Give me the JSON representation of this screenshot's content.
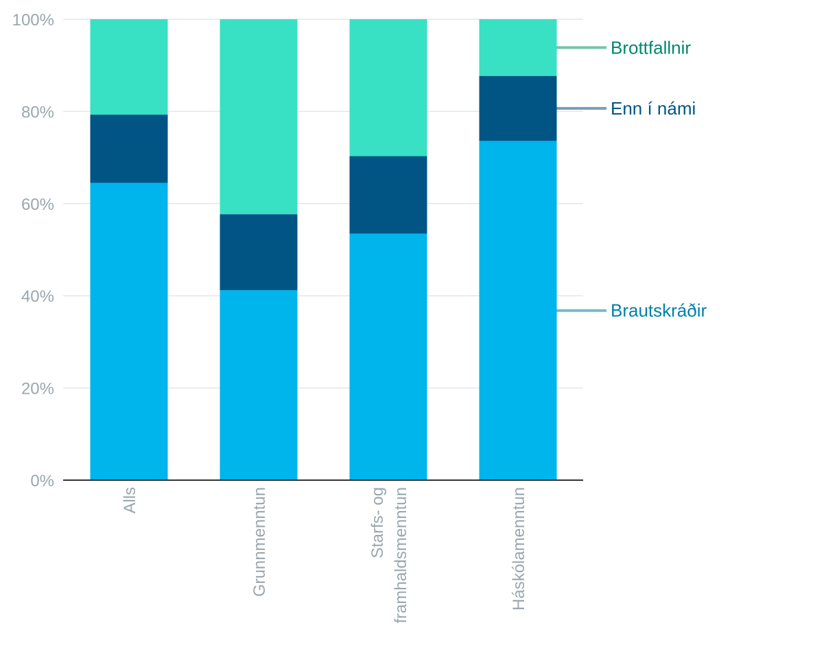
{
  "chart_data": {
    "type": "bar",
    "stacked": true,
    "normalized": true,
    "categories": [
      [
        "Alls"
      ],
      [
        "Grunnmenntun"
      ],
      [
        "Starfs- og",
        "framhaldsmenntun"
      ],
      [
        "Háskólamenntun"
      ]
    ],
    "series": [
      {
        "name": "Brautskráðir",
        "color": "#00b4ec",
        "label_color": "#0080ab",
        "leader_color": "#7ab8cc",
        "values": [
          64.5,
          41.2,
          53.5,
          73.6
        ]
      },
      {
        "name": "Enn í námi",
        "color": "#005585",
        "label_color": "#005585",
        "leader_color": "#7a9fb8",
        "values": [
          14.8,
          16.5,
          16.8,
          14.1
        ]
      },
      {
        "name": "Brottfallnir",
        "color": "#38e0c4",
        "label_color": "#00896c",
        "leader_color": "#75c2ae",
        "values": [
          20.7,
          42.3,
          29.7,
          12.3
        ]
      }
    ],
    "ylim": [
      0,
      100
    ],
    "yticks": [
      0,
      20,
      40,
      60,
      80,
      100
    ],
    "ytick_format": "%",
    "grid": true,
    "legend": "right, labels attached to last bar"
  }
}
